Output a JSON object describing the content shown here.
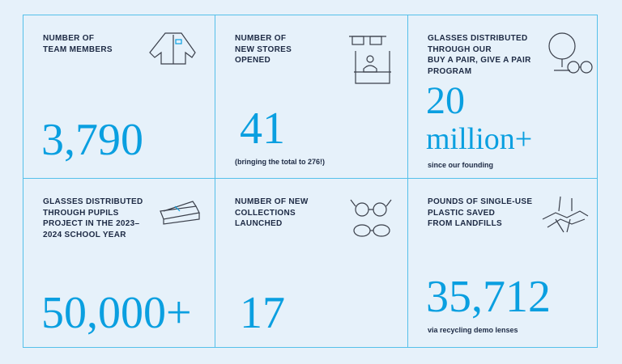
{
  "stats": [
    {
      "label_line1": "Number of",
      "label_line2": "team members",
      "label_line3": "",
      "value": "3,790",
      "caption": "",
      "icon": "shirt-icon"
    },
    {
      "label_line1": "Number of",
      "label_line2": "new stores",
      "label_line3": "opened",
      "value": "41",
      "caption": "(bringing the total to 276!)",
      "icon": "storefront-icon"
    },
    {
      "label_line1": "Glasses distributed",
      "label_line2": "through our",
      "label_line3": "Buy a Pair, Give a Pair",
      "label_line4": "program",
      "value_line1": "20",
      "value_line2": "million+",
      "caption": "since our founding",
      "icon": "globe-glasses-icon"
    },
    {
      "label_line1": "Glasses distributed",
      "label_line2": "through Pupils",
      "label_line3": "Project in the 2023–",
      "label_line4": "2024 school year",
      "value": "50,000+",
      "caption": "",
      "icon": "books-icon"
    },
    {
      "label_line1": "Number of new",
      "label_line2": "collections",
      "label_line3": "launched",
      "value": "17",
      "caption": "",
      "icon": "glasses-icon"
    },
    {
      "label_line1": "Pounds of single-use",
      "label_line2": "plastic saved",
      "label_line3": "from landfills",
      "value": "35,712",
      "caption": "via recycling demo lenses",
      "icon": "hands-icon"
    }
  ],
  "colors": {
    "accent": "#0a9fe0",
    "grid": "#55c0ea",
    "background": "#e6f1fa",
    "text": "#1d2a44"
  }
}
